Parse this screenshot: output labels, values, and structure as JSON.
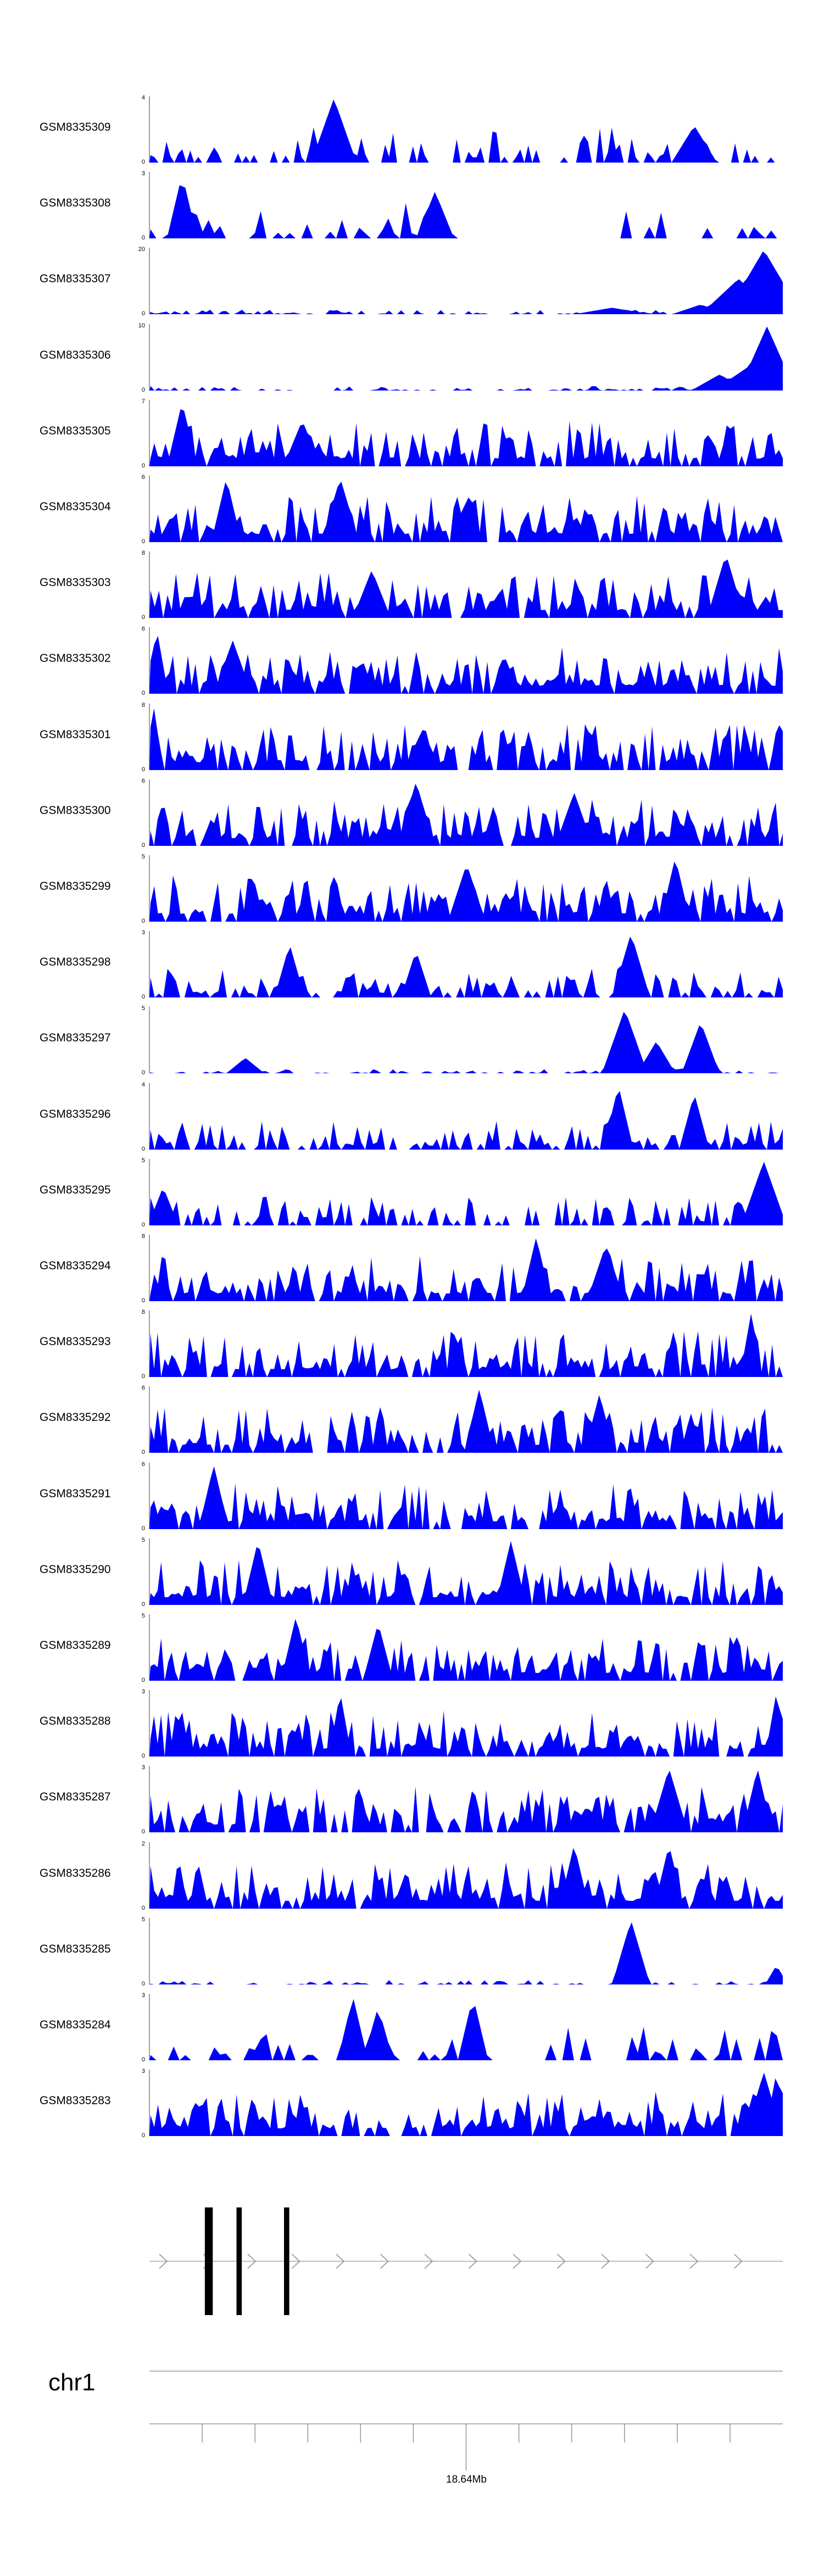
{
  "chart_data": {
    "type": "area",
    "x_range": [
      18580000,
      18700000
    ],
    "color": "#0000ff",
    "tracks": [
      {
        "name": "GSM8335309",
        "ymax": "4",
        "ymin": "0",
        "max_value": 4,
        "seed": 11,
        "bins": 160,
        "style": "sparse",
        "peaks": [
          [
            0.29,
            4.0,
            0.012
          ],
          [
            0.86,
            2.3,
            0.012
          ]
        ]
      },
      {
        "name": "GSM8335308",
        "ymax": "3",
        "ymin": "0",
        "max_value": 3,
        "seed": 23,
        "bins": 110,
        "style": "sparse",
        "gap": [
          0.47,
          0.72
        ],
        "peaks": [
          [
            0.05,
            3.0,
            0.008
          ],
          [
            0.45,
            2.2,
            0.01
          ]
        ]
      },
      {
        "name": "GSM8335307",
        "ymax": "20",
        "ymin": "0",
        "max_value": 20,
        "seed": 37,
        "bins": 160,
        "style": "low",
        "peaks": [
          [
            0.97,
            20.0,
            0.02
          ],
          [
            0.93,
            11.0,
            0.02
          ],
          [
            0.87,
            3.0,
            0.015
          ],
          [
            0.73,
            2.0,
            0.02
          ]
        ]
      },
      {
        "name": "GSM8335306",
        "ymax": "10",
        "ymin": "0",
        "max_value": 10,
        "seed": 41,
        "bins": 160,
        "style": "low",
        "peaks": [
          [
            0.975,
            10.0,
            0.015
          ],
          [
            0.95,
            4.0,
            0.02
          ],
          [
            0.9,
            2.5,
            0.015
          ]
        ]
      },
      {
        "name": "GSM8335305",
        "ymax": "7",
        "ymin": "0",
        "max_value": 7,
        "seed": 53,
        "bins": 170,
        "style": "dense",
        "peaks": [
          [
            0.05,
            7.0,
            0.008
          ],
          [
            0.24,
            5.0,
            0.01
          ]
        ]
      },
      {
        "name": "GSM8335304",
        "ymax": "6",
        "ymin": "0",
        "max_value": 6,
        "seed": 67,
        "bins": 170,
        "style": "dense",
        "peaks": [
          [
            0.12,
            6.0,
            0.008
          ],
          [
            0.3,
            6.0,
            0.01
          ]
        ]
      },
      {
        "name": "GSM8335303",
        "ymax": "8",
        "ymin": "0",
        "max_value": 8,
        "seed": 71,
        "bins": 150,
        "style": "dense",
        "peaks": [
          [
            0.91,
            8.0,
            0.01
          ],
          [
            0.35,
            6.0,
            0.01
          ]
        ]
      },
      {
        "name": "GSM8335302",
        "ymax": "6",
        "ymin": "0",
        "max_value": 6,
        "seed": 83,
        "bins": 170,
        "style": "dense",
        "peaks": [
          [
            0.01,
            6.0,
            0.006
          ],
          [
            0.13,
            5.0,
            0.01
          ]
        ]
      },
      {
        "name": "GSM8335301",
        "ymax": "8",
        "ymin": "0",
        "max_value": 8,
        "seed": 97,
        "bins": 180,
        "style": "dense",
        "peaks": [
          [
            0.005,
            8.0,
            0.005
          ],
          [
            0.43,
            5.0,
            0.01
          ]
        ]
      },
      {
        "name": "GSM8335300",
        "ymax": "6",
        "ymin": "0",
        "max_value": 6,
        "seed": 101,
        "bins": 180,
        "style": "dense",
        "peaks": [
          [
            0.42,
            6.0,
            0.01
          ],
          [
            0.67,
            5.0,
            0.01
          ]
        ]
      },
      {
        "name": "GSM8335299",
        "ymax": "5",
        "ymin": "0",
        "max_value": 5,
        "seed": 113,
        "bins": 170,
        "style": "dense",
        "peaks": [
          [
            0.83,
            5.0,
            0.008
          ],
          [
            0.5,
            4.5,
            0.01
          ]
        ]
      },
      {
        "name": "GSM8335298",
        "ymax": "3",
        "ymin": "0",
        "max_value": 3,
        "seed": 127,
        "bins": 150,
        "style": "medium",
        "peaks": [
          [
            0.76,
            3.0,
            0.01
          ],
          [
            0.22,
            2.5,
            0.008
          ],
          [
            0.42,
            2.2,
            0.008
          ]
        ]
      },
      {
        "name": "GSM8335297",
        "ymax": "5",
        "ymin": "0",
        "max_value": 5,
        "seed": 131,
        "bins": 160,
        "style": "low",
        "peaks": [
          [
            0.75,
            5.0,
            0.012
          ],
          [
            0.87,
            4.0,
            0.01
          ],
          [
            0.8,
            2.5,
            0.01
          ],
          [
            0.15,
            1.2,
            0.01
          ]
        ]
      },
      {
        "name": "GSM8335296",
        "ymax": "4",
        "ymin": "0",
        "max_value": 4,
        "seed": 149,
        "bins": 160,
        "style": "medium",
        "peaks": [
          [
            0.74,
            4.0,
            0.008
          ],
          [
            0.86,
            3.5,
            0.008
          ]
        ]
      },
      {
        "name": "GSM8335295",
        "ymax": "5",
        "ymin": "0",
        "max_value": 5,
        "seed": 151,
        "bins": 170,
        "style": "medium",
        "peaks": [
          [
            0.97,
            5.0,
            0.012
          ],
          [
            0.02,
            3.0,
            0.008
          ]
        ]
      },
      {
        "name": "GSM8335294",
        "ymax": "8",
        "ymin": "0",
        "max_value": 8,
        "seed": 163,
        "bins": 170,
        "style": "dense",
        "peaks": [
          [
            0.61,
            8.0,
            0.008
          ],
          [
            0.72,
            7.0,
            0.01
          ]
        ]
      },
      {
        "name": "GSM8335293",
        "ymax": "8",
        "ymin": "0",
        "max_value": 8,
        "seed": 173,
        "bins": 180,
        "style": "dense",
        "peaks": [
          [
            0.95,
            8.0,
            0.006
          ]
        ]
      },
      {
        "name": "GSM8335292",
        "ymax": "6",
        "ymin": "0",
        "max_value": 6,
        "seed": 181,
        "bins": 180,
        "style": "dense",
        "peaks": [
          [
            0.52,
            6.0,
            0.008
          ],
          [
            0.71,
            5.5,
            0.008
          ]
        ]
      },
      {
        "name": "GSM8335291",
        "ymax": "6",
        "ymin": "0",
        "max_value": 6,
        "seed": 191,
        "bins": 180,
        "style": "dense",
        "peaks": [
          [
            0.1,
            6.0,
            0.008
          ]
        ]
      },
      {
        "name": "GSM8335290",
        "ymax": "5",
        "ymin": "0",
        "max_value": 5,
        "seed": 199,
        "bins": 180,
        "style": "dense",
        "peaks": [
          [
            0.17,
            5.0,
            0.008
          ],
          [
            0.57,
            5.0,
            0.008
          ]
        ]
      },
      {
        "name": "GSM8335289",
        "ymax": "5",
        "ymin": "0",
        "max_value": 5,
        "seed": 211,
        "bins": 180,
        "style": "dense",
        "peaks": [
          [
            0.23,
            5.0,
            0.008
          ],
          [
            0.36,
            4.5,
            0.008
          ]
        ]
      },
      {
        "name": "GSM8335288",
        "ymax": "3",
        "ymin": "0",
        "max_value": 3,
        "seed": 223,
        "bins": 180,
        "style": "dense",
        "peaks": [
          [
            0.3,
            3.0,
            0.006
          ],
          [
            0.99,
            3.0,
            0.006
          ]
        ]
      },
      {
        "name": "GSM8335287",
        "ymax": "3",
        "ymin": "0",
        "max_value": 3,
        "seed": 227,
        "bins": 180,
        "style": "dense",
        "peaks": [
          [
            0.82,
            3.0,
            0.01
          ],
          [
            0.96,
            3.0,
            0.008
          ]
        ]
      },
      {
        "name": "GSM8335286",
        "ymax": "2",
        "ymin": "0",
        "max_value": 2,
        "seed": 239,
        "bins": 170,
        "style": "dense",
        "peaks": [
          [
            0.67,
            2.0,
            0.008
          ],
          [
            0.82,
            2.0,
            0.008
          ]
        ]
      },
      {
        "name": "GSM8335285",
        "ymax": "5",
        "ymin": "0",
        "max_value": 5,
        "seed": 241,
        "bins": 160,
        "style": "low",
        "peaks": [
          [
            0.76,
            5.0,
            0.01
          ],
          [
            0.99,
            1.5,
            0.006
          ]
        ]
      },
      {
        "name": "GSM8335284",
        "ymax": "3",
        "ymin": "0",
        "max_value": 3,
        "seed": 251,
        "bins": 110,
        "style": "sparse",
        "gap": [
          0.52,
          0.63
        ],
        "peaks": [
          [
            0.32,
            3.0,
            0.008
          ],
          [
            0.51,
            3.0,
            0.008
          ],
          [
            0.36,
            2.5,
            0.008
          ]
        ]
      },
      {
        "name": "GSM8335283",
        "ymax": "3",
        "ymin": "0",
        "max_value": 3,
        "seed": 257,
        "bins": 170,
        "style": "dense",
        "peaks": [
          [
            0.97,
            3.0,
            0.01
          ],
          [
            0.99,
            3.0,
            0.006
          ]
        ]
      }
    ],
    "gene": {
      "strand": "+",
      "exons": [
        [
          18590500,
          18592000
        ],
        [
          18596500,
          18597500
        ],
        [
          18605500,
          18606500
        ]
      ]
    },
    "ideogram": {
      "chromosome": "chr1"
    },
    "axis": {
      "ticks": [
        18590000,
        18600000,
        18610000,
        18620000,
        18630000,
        18640000,
        18650000,
        18660000,
        18670000,
        18680000,
        18690000
      ],
      "label": "18.64Mb",
      "label_at": 18640000
    }
  }
}
